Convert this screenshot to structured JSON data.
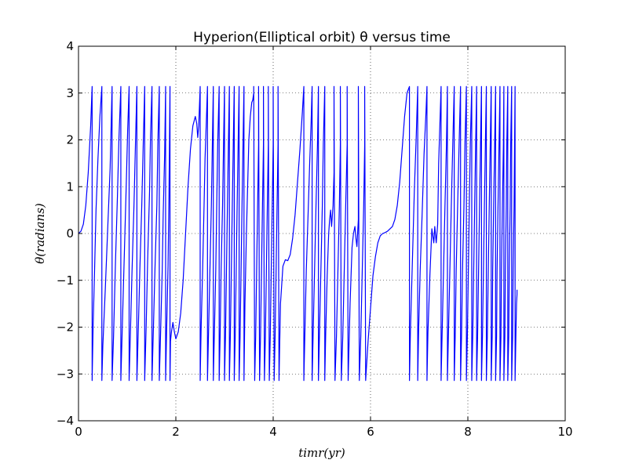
{
  "chart_data": {
    "type": "line",
    "title": "Hyperion(Elliptical orbit) θ versus time",
    "xlabel": "timr(yr)",
    "ylabel": "θ(radians)",
    "xlim": [
      0,
      10
    ],
    "ylim": [
      -4,
      4
    ],
    "xticks": [
      "0",
      "2",
      "4",
      "6",
      "8",
      "10"
    ],
    "yticks": [
      "4",
      "3",
      "2",
      "1",
      "0",
      "−1",
      "−2",
      "−3",
      "−4"
    ],
    "grid": true,
    "legend": "none",
    "series_color": "#0000ff",
    "series": [
      {
        "x": [
          0,
          0.05,
          0.1,
          0.15,
          0.2,
          0.25,
          0.28,
          0.28,
          0.3,
          0.33,
          0.36,
          0.4,
          0.44,
          0.48,
          0.48,
          0.5,
          0.55,
          0.6,
          0.65,
          0.69,
          0.69,
          0.72,
          0.76,
          0.8,
          0.83,
          0.87,
          0.87,
          0.9,
          0.94,
          0.98,
          1.01,
          1.04,
          1.04,
          1.07,
          1.1,
          1.14,
          1.17,
          1.2,
          1.2,
          1.23,
          1.26,
          1.3,
          1.33,
          1.36,
          1.36,
          1.39,
          1.42,
          1.46,
          1.48,
          1.51,
          1.51,
          1.54,
          1.57,
          1.61,
          1.63,
          1.66,
          1.66,
          1.69,
          1.72,
          1.74,
          1.77,
          1.79,
          1.79,
          1.81,
          1.84,
          1.86,
          1.88,
          1.88,
          1.89,
          1.91,
          1.94,
          1.97,
          2.0,
          2.05,
          2.1,
          2.15,
          2.2,
          2.25,
          2.3,
          2.35,
          2.4,
          2.43,
          2.45,
          2.47,
          2.5,
          2.5,
          2.52,
          2.55,
          2.58,
          2.6,
          2.63,
          2.65,
          2.65,
          2.67,
          2.7,
          2.73,
          2.75,
          2.77,
          2.77,
          2.79,
          2.82,
          2.84,
          2.86,
          2.89,
          2.89,
          2.91,
          2.93,
          2.96,
          2.98,
          3.0,
          3.0,
          3.02,
          3.04,
          3.06,
          3.08,
          3.1,
          3.1,
          3.12,
          3.14,
          3.16,
          3.18,
          3.2,
          3.2,
          3.22,
          3.24,
          3.26,
          3.28,
          3.3,
          3.3,
          3.32,
          3.34,
          3.36,
          3.38,
          3.4,
          3.4,
          3.42,
          3.45,
          3.48,
          3.5,
          3.53,
          3.56,
          3.58,
          3.6,
          3.6,
          3.62,
          3.64,
          3.66,
          3.68,
          3.7,
          3.7,
          3.72,
          3.74,
          3.76,
          3.78,
          3.8,
          3.8,
          3.82,
          3.84,
          3.86,
          3.88,
          3.9,
          3.9,
          3.92,
          3.94,
          3.96,
          3.98,
          4.0,
          4.0,
          4.02,
          4.04,
          4.06,
          4.08,
          4.1,
          4.1,
          4.12,
          4.15,
          4.2,
          4.25,
          4.3,
          4.35,
          4.4,
          4.45,
          4.5,
          4.55,
          4.6,
          4.63,
          4.63,
          4.65,
          4.68,
          4.72,
          4.75,
          4.78,
          4.8,
          4.8,
          4.82,
          4.85,
          4.88,
          4.91,
          4.93,
          4.93,
          4.95,
          4.98,
          5.01,
          5.03,
          5.06,
          5.06,
          5.08,
          5.11,
          5.14,
          5.16,
          5.18,
          5.2,
          5.23,
          5.25,
          5.25,
          5.27,
          5.3,
          5.33,
          5.36,
          5.38,
          5.38,
          5.4,
          5.43,
          5.46,
          5.49,
          5.52,
          5.52,
          5.54,
          5.58,
          5.62,
          5.65,
          5.68,
          5.7,
          5.72,
          5.75,
          5.75,
          5.77,
          5.8,
          5.83,
          5.86,
          5.88,
          5.88,
          5.9,
          5.95,
          6.0,
          6.05,
          6.1,
          6.15,
          6.2,
          6.25,
          6.3,
          6.35,
          6.4,
          6.45,
          6.5,
          6.55,
          6.6,
          6.65,
          6.7,
          6.75,
          6.8,
          6.8,
          6.82,
          6.86,
          6.9,
          6.94,
          6.97,
          6.97,
          6.99,
          7.02,
          7.06,
          7.1,
          7.14,
          7.16,
          7.16,
          7.18,
          7.22,
          7.26,
          7.3,
          7.32,
          7.35,
          7.38,
          7.4,
          7.45,
          7.45,
          7.47,
          7.5,
          7.53,
          7.56,
          7.58,
          7.58,
          7.6,
          7.63,
          7.66,
          7.69,
          7.72,
          7.72,
          7.74,
          7.76,
          7.79,
          7.82,
          7.85,
          7.85,
          7.87,
          7.89,
          7.92,
          7.94,
          7.97,
          7.97,
          7.99,
          8.01,
          8.03,
          8.05,
          8.08,
          8.08,
          8.1,
          8.12,
          8.14,
          8.16,
          8.18,
          8.18,
          8.2,
          8.22,
          8.24,
          8.26,
          8.28,
          8.28,
          8.3,
          8.32,
          8.34,
          8.36,
          8.38,
          8.38,
          8.4,
          8.42,
          8.44,
          8.46,
          8.48,
          8.48,
          8.5,
          8.51,
          8.53,
          8.55,
          8.57,
          8.57,
          8.59,
          8.6,
          8.62,
          8.64,
          8.66,
          8.66,
          8.68,
          8.69,
          8.71,
          8.73,
          8.74,
          8.74,
          8.76,
          8.77,
          8.79,
          8.8,
          8.82,
          8.82,
          8.84,
          8.85,
          8.87,
          8.88,
          8.9,
          8.9,
          8.92,
          8.93,
          8.95,
          8.96,
          8.97,
          8.97,
          8.98,
          8.99,
          9.0,
          9.01,
          9.01
        ],
        "y": [
          0,
          0.05,
          0.2,
          0.6,
          1.3,
          2.3,
          3.14,
          -3.14,
          -2.0,
          -0.8,
          0.5,
          1.6,
          2.5,
          3.14,
          -3.14,
          -2.4,
          -1.2,
          0.1,
          1.4,
          3.14,
          -3.14,
          -2.2,
          -0.6,
          0.8,
          2.0,
          3.14,
          -3.14,
          -2.0,
          -0.5,
          1.0,
          2.2,
          3.14,
          -3.14,
          -2.0,
          -0.8,
          0.6,
          1.9,
          3.14,
          -3.14,
          -2.0,
          -0.8,
          0.6,
          1.9,
          3.14,
          -3.14,
          -2.0,
          -0.6,
          0.9,
          2.1,
          3.14,
          -3.14,
          -2.0,
          -0.8,
          0.6,
          1.9,
          3.14,
          -3.14,
          -2.0,
          -0.8,
          0.4,
          1.7,
          3.14,
          -3.14,
          -2.1,
          -0.7,
          0.9,
          3.14,
          -3.14,
          -2.3,
          -2.1,
          -1.9,
          -2.1,
          -2.25,
          -2.1,
          -1.7,
          -1.0,
          0.0,
          1.0,
          1.8,
          2.3,
          2.5,
          2.35,
          2.05,
          2.3,
          3.14,
          -3.14,
          -2.0,
          -0.8,
          0.6,
          1.6,
          2.5,
          3.14,
          -3.14,
          -2.2,
          -0.8,
          0.6,
          1.9,
          3.14,
          -3.14,
          -2.2,
          -0.8,
          0.6,
          1.9,
          3.14,
          -3.14,
          -2.2,
          -0.8,
          0.6,
          1.9,
          3.14,
          -3.14,
          -2.2,
          -0.8,
          0.6,
          1.9,
          3.14,
          -3.14,
          -2.2,
          -0.8,
          0.6,
          1.9,
          3.14,
          -3.14,
          -2.2,
          -0.8,
          0.6,
          1.9,
          3.14,
          -3.14,
          -2.2,
          -0.8,
          0.6,
          1.9,
          3.14,
          -3.14,
          -1.5,
          0.0,
          1.2,
          2.0,
          2.5,
          2.8,
          2.85,
          3.0,
          3.14,
          -3.14,
          -2.2,
          -0.8,
          0.6,
          1.9,
          3.14,
          -3.14,
          -2.2,
          -0.8,
          0.6,
          1.9,
          3.14,
          -3.14,
          -2.2,
          -0.8,
          0.6,
          1.9,
          3.14,
          -3.14,
          -2.2,
          -0.8,
          0.6,
          1.9,
          3.14,
          -3.14,
          -2.2,
          -0.8,
          0.6,
          1.9,
          3.14,
          -3.14,
          -1.5,
          -0.7,
          -0.56,
          -0.58,
          -0.45,
          -0.1,
          0.4,
          1.1,
          1.8,
          2.6,
          3.14,
          -3.14,
          -2.2,
          -0.8,
          0.5,
          1.5,
          2.4,
          3.14,
          -3.14,
          -2.2,
          -0.8,
          0.6,
          1.9,
          3.14,
          -3.14,
          -2.2,
          -0.8,
          0.6,
          1.9,
          3.14,
          -3.14,
          -2.1,
          -0.9,
          0.0,
          0.3,
          0.5,
          0.15,
          0.6,
          1.3,
          3.14,
          -3.14,
          -2.2,
          -0.8,
          0.6,
          1.9,
          3.14,
          -3.14,
          -2.2,
          -0.8,
          0.6,
          1.9,
          3.14,
          -3.14,
          -1.5,
          -0.3,
          0.0,
          0.15,
          -0.1,
          -0.28,
          0.3,
          3.14,
          -3.14,
          -2.2,
          -0.8,
          0.6,
          1.9,
          3.14,
          -3.14,
          -2.3,
          -1.6,
          -0.9,
          -0.5,
          -0.2,
          -0.05,
          0.0,
          0.02,
          0.05,
          0.1,
          0.15,
          0.3,
          0.6,
          1.1,
          1.8,
          2.5,
          3.0,
          3.14,
          -3.14,
          -2.1,
          -0.6,
          0.9,
          2.1,
          3.14,
          -3.14,
          -2.0,
          -0.8,
          0.4,
          1.7,
          2.6,
          3.14,
          -3.14,
          -2.1,
          -0.9,
          0.1,
          -0.2,
          0.15,
          -0.2,
          0.2,
          1.5,
          3.14,
          -3.14,
          -2.2,
          -0.8,
          0.6,
          1.9,
          3.14,
          -3.14,
          -2.2,
          -0.8,
          0.6,
          1.9,
          3.14,
          -3.14,
          -2.2,
          -0.8,
          0.6,
          1.9,
          3.14,
          -3.14,
          -2.2,
          -0.8,
          0.6,
          1.9,
          3.14,
          -3.14,
          -2.2,
          -0.8,
          0.6,
          1.9,
          3.14,
          -3.14,
          -2.2,
          -0.8,
          0.6,
          1.9,
          3.14,
          -3.14,
          -2.2,
          -0.8,
          0.6,
          1.9,
          3.14,
          -3.14,
          -2.2,
          -0.8,
          0.6,
          1.9,
          3.14,
          -3.14,
          -2.2,
          -0.8,
          0.6,
          1.9,
          3.14,
          -3.14,
          -2.2,
          -0.8,
          0.6,
          1.9,
          3.14,
          -3.14,
          -2.2,
          -0.8,
          0.6,
          1.9,
          3.14,
          -3.14,
          -2.2,
          -0.8,
          0.6,
          1.9,
          3.14,
          -3.14,
          -2.2,
          -0.8,
          0.6,
          1.9,
          3.14,
          -3.14,
          -2.2,
          -0.8,
          0.6,
          1.9,
          3.14,
          -3.14,
          -2.2,
          -0.8,
          0.6,
          1.9,
          3.14,
          -3.14,
          -2.6,
          -2.0,
          -1.5,
          -1.3,
          -1.2
        ]
      }
    ]
  }
}
